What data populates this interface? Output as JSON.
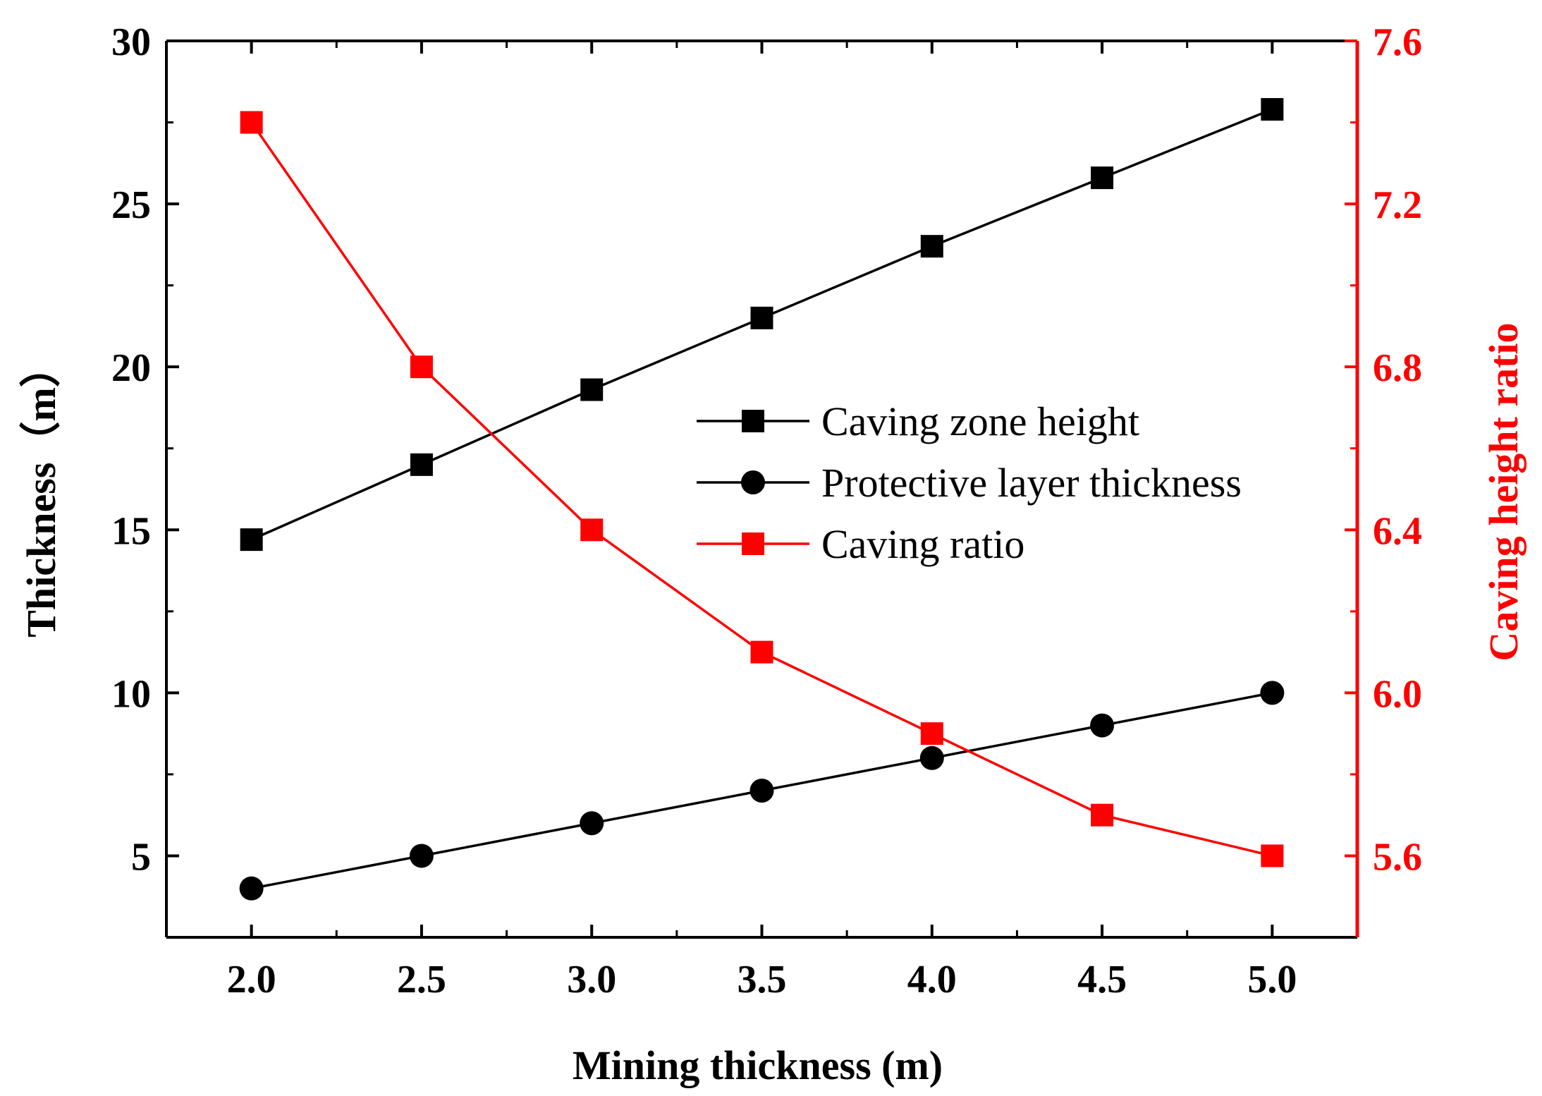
{
  "chart_data": {
    "type": "line",
    "x": [
      2.0,
      2.5,
      3.0,
      3.5,
      4.0,
      4.5,
      5.0
    ],
    "xlabel": "Mining thickness (m)",
    "ylabel_left": "Thickness（m）",
    "ylabel_right": "Caving height ratio",
    "xlim": [
      1.75,
      5.25
    ],
    "ylim_left": [
      2.5,
      30
    ],
    "ylim_right": [
      5.4,
      7.6
    ],
    "x_ticks": [
      "2.0",
      "2.5",
      "3.0",
      "3.5",
      "4.0",
      "4.5",
      "5.0"
    ],
    "y_left_ticks": [
      "5",
      "10",
      "15",
      "20",
      "25",
      "30"
    ],
    "y_right_ticks": [
      "5.6",
      "6.0",
      "6.4",
      "6.8",
      "7.2",
      "7.6"
    ],
    "legend_position": "center-right",
    "series": [
      {
        "name": "Caving zone height",
        "axis": "left",
        "marker": "square",
        "color": "#000000",
        "values": [
          14.7,
          17.0,
          19.3,
          21.5,
          23.7,
          25.8,
          27.9
        ]
      },
      {
        "name": "Protective layer thickness",
        "axis": "left",
        "marker": "circle",
        "color": "#000000",
        "values": [
          4.0,
          5.0,
          6.0,
          7.0,
          8.0,
          9.0,
          10.0
        ]
      },
      {
        "name": "Caving ratio",
        "axis": "right",
        "marker": "square",
        "color": "#ff0000",
        "values": [
          7.4,
          6.8,
          6.4,
          6.1,
          5.9,
          5.7,
          5.6
        ]
      }
    ]
  }
}
